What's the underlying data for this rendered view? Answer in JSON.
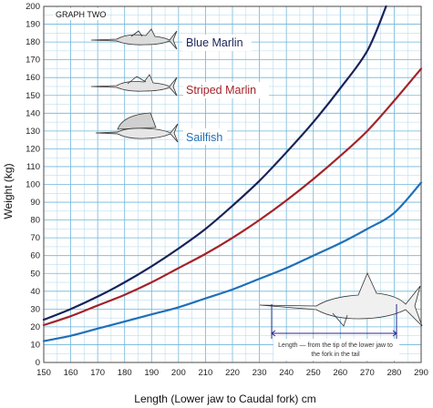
{
  "chart_data": {
    "type": "line",
    "title": "GRAPH TWO",
    "xlabel": "Length (Lower jaw to Caudal fork) cm",
    "ylabel": "Weight (kg)",
    "xlim": [
      150,
      290
    ],
    "ylim": [
      0,
      200
    ],
    "xticks": [
      "150",
      "160",
      "170",
      "180",
      "190",
      "200",
      "210",
      "220",
      "230",
      "240",
      "250",
      "260",
      "270",
      "280",
      "290"
    ],
    "yticks": [
      "0",
      "10",
      "20",
      "30",
      "40",
      "50",
      "60",
      "70",
      "80",
      "90",
      "100",
      "110",
      "120",
      "130",
      "140",
      "150",
      "160",
      "170",
      "180",
      "190",
      "200"
    ],
    "grid": true,
    "legend_position": "top-left",
    "series": [
      {
        "name": "Blue Marlin",
        "color": "#1a2259",
        "x": [
          150,
          160,
          170,
          180,
          190,
          200,
          210,
          220,
          230,
          240,
          250,
          260,
          270,
          277
        ],
        "y": [
          24,
          30,
          37,
          45,
          54,
          64,
          75,
          88,
          102,
          118,
          135,
          154,
          175,
          200
        ]
      },
      {
        "name": "Striped Marlin",
        "color": "#a52228",
        "x": [
          150,
          160,
          170,
          180,
          190,
          200,
          210,
          220,
          230,
          240,
          250,
          260,
          270,
          280,
          290
        ],
        "y": [
          21,
          26,
          32,
          38,
          45,
          53,
          61,
          70,
          80,
          91,
          103,
          116,
          130,
          147,
          165
        ]
      },
      {
        "name": "Sailfish",
        "color": "#1f6fb8",
        "x": [
          150,
          160,
          170,
          180,
          190,
          200,
          210,
          220,
          230,
          240,
          250,
          260,
          270,
          280,
          290
        ],
        "y": [
          12,
          15,
          19,
          23,
          27,
          31,
          36,
          41,
          47,
          53,
          60,
          67,
          75,
          84,
          101
        ]
      }
    ],
    "annotation": "Length — from the tip of the lower jaw to the fork in the tail"
  }
}
